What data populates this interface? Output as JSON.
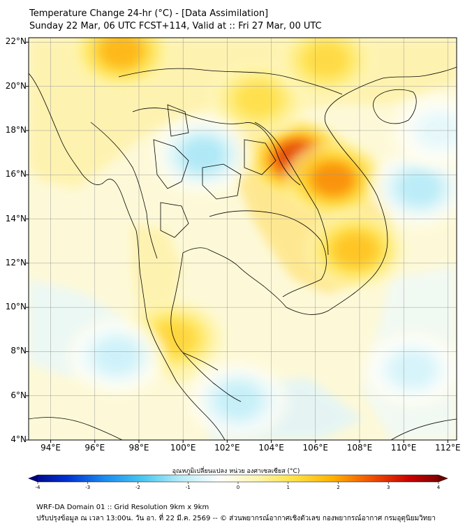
{
  "header": {
    "title": "Temperature Change 24-hr (°C) - [Data Assimilation]",
    "subtitle": "Sunday 22 Mar, 06 UTC FCST+114, Valid at :: Fri 27 Mar, 00 UTC"
  },
  "axes": {
    "lat_labels": [
      "22°N",
      "20°N",
      "18°N",
      "16°N",
      "14°N",
      "12°N",
      "10°N",
      "8°N",
      "6°N",
      "4°N"
    ],
    "lon_labels": [
      "94°E",
      "96°E",
      "98°E",
      "100°E",
      "102°E",
      "104°E",
      "106°E",
      "108°E",
      "110°E",
      "112°E"
    ],
    "lat_range": [
      4,
      22.2
    ],
    "lon_range": [
      93,
      112.4
    ]
  },
  "colorbar": {
    "title": "อุณหภูมิเปลี่ยนแปลง หน่วย องศาเซลเซียส (°C)",
    "tick_labels": [
      "-4",
      "-3",
      "-2",
      "-1",
      "0",
      "1",
      "2",
      "3",
      "4"
    ],
    "min": -4,
    "max": 4,
    "colors": [
      "#00007a",
      "#0030d0",
      "#1a8cf0",
      "#48c8f0",
      "#b8ecf8",
      "#ffffff",
      "#fff6b0",
      "#ffe040",
      "#ffb000",
      "#f05000",
      "#c80000",
      "#6a0000"
    ]
  },
  "footer": {
    "line1": "WRF-DA Domain 01 :: Grid Resolution 9km x 9km",
    "line2": "ปรับปรุงข้อมูล ณ เวลา 13:00น. วัน อา. ที่ 22 มี.ค. 2569 -- © ส่วนพยากรณ์อากาศเชิงตัวเลข กองพยากรณ์อากาศ กรมอุตุนิยมวิทยา"
  },
  "field": {
    "warm_spots": [
      {
        "name": "north-myanmar",
        "lon": 97.2,
        "lat": 21.6,
        "value": 1.9
      },
      {
        "name": "laos-vietnam-border",
        "lon": 105.2,
        "lat": 16.7,
        "value": 3.1
      },
      {
        "name": "central-vietnam",
        "lon": 106.8,
        "lat": 15.8,
        "value": 2.3
      },
      {
        "name": "south-vietnam",
        "lon": 107.8,
        "lat": 12.6,
        "value": 1.7
      },
      {
        "name": "north-laos",
        "lon": 103.4,
        "lat": 19.4,
        "value": 1.2
      },
      {
        "name": "south-china",
        "lon": 106.5,
        "lat": 21.2,
        "value": 1.3
      },
      {
        "name": "thai-peninsula",
        "lon": 99.6,
        "lat": 8.6,
        "value": 1.4
      }
    ],
    "cool_spots": [
      {
        "name": "central-thailand",
        "lon": 100.9,
        "lat": 16.9,
        "value": -1.3
      },
      {
        "name": "andaman-sea",
        "lon": 97.0,
        "lat": 7.8,
        "value": -1.0
      },
      {
        "name": "gulf-of-thailand-south",
        "lon": 102.5,
        "lat": 5.8,
        "value": -1.1
      },
      {
        "name": "south-china-sea-east",
        "lon": 110.7,
        "lat": 15.4,
        "value": -1.2
      },
      {
        "name": "south-china-sea-south",
        "lon": 110.4,
        "lat": 7.2,
        "value": -0.9
      },
      {
        "name": "east-of-hainan",
        "lon": 111.6,
        "lat": 18.0,
        "value": -0.7
      }
    ]
  }
}
